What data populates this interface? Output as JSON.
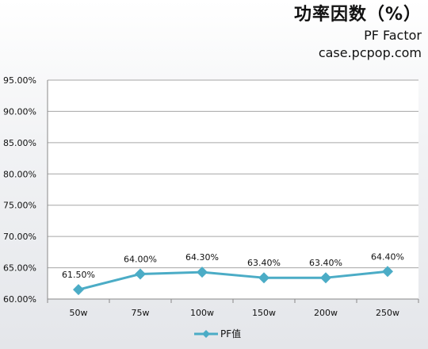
{
  "header": {
    "title": "功率因数（%）",
    "subtitle": "PF Factor",
    "source": "case.pcpop.com"
  },
  "colors": {
    "series": "#4bacc6",
    "gridline": "#a6a6a6",
    "plot_bg": "#ffffff"
  },
  "chart_data": {
    "type": "line",
    "title": "功率因数（%）",
    "subtitle": "PF Factor",
    "categories": [
      "50w",
      "75w",
      "100w",
      "150w",
      "200w",
      "250w"
    ],
    "series": [
      {
        "name": "PF值",
        "values": [
          61.5,
          64.0,
          64.3,
          63.4,
          63.4,
          64.4
        ],
        "labels": [
          "61.50%",
          "64.00%",
          "64.30%",
          "63.40%",
          "63.40%",
          "64.40%"
        ],
        "marker": "diamond"
      }
    ],
    "ylim": [
      60,
      95
    ],
    "yticks": [
      "60.00%",
      "65.00%",
      "70.00%",
      "75.00%",
      "80.00%",
      "85.00%",
      "90.00%",
      "95.00%"
    ],
    "xlabel": "",
    "ylabel": "",
    "grid": true,
    "legend": "bottom"
  }
}
